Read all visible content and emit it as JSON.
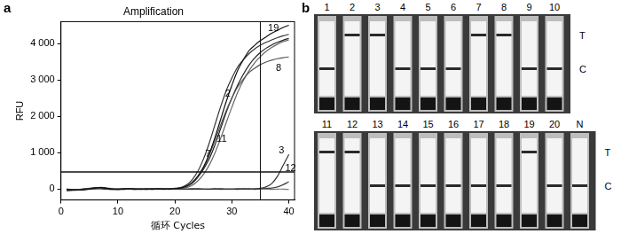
{
  "chart_data": {
    "type": "line",
    "title": "Amplification",
    "x_label": "循环 Cycles",
    "y_label": "RFU",
    "x": [
      1,
      2,
      3,
      4,
      5,
      6,
      7,
      8,
      9,
      10,
      11,
      12,
      13,
      14,
      15,
      16,
      17,
      18,
      19,
      20,
      21,
      22,
      23,
      24,
      25,
      26,
      27,
      28,
      29,
      30,
      31,
      32,
      33,
      34,
      35,
      36,
      37,
      38,
      39,
      40
    ],
    "series": [
      {
        "color": "#111111",
        "values": [
          0,
          -20,
          -30,
          -20,
          0,
          30,
          50,
          20,
          0,
          -10,
          0,
          10,
          0,
          -10,
          0,
          0,
          10,
          0,
          0,
          10,
          30,
          80,
          180,
          350,
          600,
          950,
          1400,
          1900,
          2400,
          2850,
          3250,
          3550,
          3800,
          3950,
          4080,
          4180,
          4280,
          4360,
          4440,
          4500
        ]
      },
      {
        "color": "#333333",
        "values": [
          -10,
          -30,
          -20,
          0,
          20,
          40,
          30,
          10,
          0,
          0,
          10,
          0,
          -10,
          0,
          0,
          10,
          0,
          0,
          10,
          20,
          40,
          110,
          250,
          480,
          820,
          1250,
          1750,
          2250,
          2700,
          3050,
          3350,
          3550,
          3720,
          3850,
          3950,
          4030,
          4100,
          4160,
          4210,
          4250
        ]
      },
      {
        "color": "#555555",
        "values": [
          0,
          -10,
          -20,
          -10,
          10,
          20,
          40,
          30,
          10,
          0,
          0,
          0,
          10,
          0,
          -10,
          0,
          0,
          10,
          0,
          0,
          20,
          60,
          150,
          320,
          580,
          920,
          1320,
          1750,
          2150,
          2500,
          2800,
          3020,
          3200,
          3320,
          3420,
          3490,
          3540,
          3580,
          3610,
          3630
        ]
      },
      {
        "color": "#222222",
        "values": [
          -20,
          -30,
          -10,
          0,
          10,
          20,
          20,
          0,
          -10,
          0,
          0,
          10,
          0,
          0,
          0,
          -10,
          0,
          0,
          0,
          10,
          20,
          70,
          160,
          320,
          540,
          820,
          1200,
          1650,
          2100,
          2500,
          2850,
          3150,
          3400,
          3600,
          3750,
          3870,
          3960,
          4030,
          4090,
          4140
        ]
      },
      {
        "color": "#666666",
        "values": [
          -10,
          -20,
          -20,
          0,
          0,
          10,
          30,
          20,
          0,
          0,
          -10,
          0,
          0,
          10,
          0,
          0,
          0,
          -10,
          0,
          0,
          10,
          40,
          100,
          220,
          400,
          650,
          980,
          1380,
          1820,
          2250,
          2650,
          2980,
          3250,
          3470,
          3640,
          3780,
          3890,
          3980,
          4050,
          4100
        ]
      },
      {
        "color": "#333333",
        "values": [
          -30,
          -20,
          -10,
          0,
          10,
          20,
          10,
          0,
          0,
          -10,
          0,
          0,
          0,
          0,
          10,
          0,
          0,
          0,
          0,
          0,
          0,
          0,
          10,
          0,
          0,
          0,
          10,
          0,
          0,
          0,
          0,
          10,
          0,
          10,
          20,
          60,
          150,
          350,
          650,
          950
        ]
      },
      {
        "color": "#444444",
        "values": [
          -40,
          -30,
          -20,
          -10,
          0,
          10,
          20,
          10,
          0,
          0,
          0,
          0,
          0,
          0,
          0,
          0,
          0,
          10,
          0,
          0,
          0,
          0,
          0,
          10,
          0,
          0,
          0,
          10,
          0,
          0,
          10,
          0,
          10,
          0,
          10,
          20,
          30,
          60,
          120,
          200
        ]
      },
      {
        "color": "#777777",
        "values": [
          -60,
          -40,
          -30,
          -20,
          -10,
          0,
          10,
          0,
          -10,
          -10,
          -10,
          0,
          -10,
          0,
          -10,
          0,
          -10,
          0,
          -10,
          0,
          -10,
          0,
          -10,
          0,
          0,
          -10,
          0,
          -10,
          0,
          0,
          -10,
          0,
          0,
          -10,
          0,
          0,
          -10,
          0,
          0,
          -10
        ]
      }
    ],
    "xlim": [
      0,
      41
    ],
    "xticks": [
      0,
      10,
      20,
      30,
      40
    ],
    "ylim": [
      -300,
      4600
    ],
    "yticks": [
      0,
      {
        "value": 1000,
        "label": "1 000"
      },
      {
        "value": 2000,
        "label": "2 000"
      },
      {
        "value": 3000,
        "label": "3 000"
      },
      {
        "value": 4000,
        "label": "4 000"
      }
    ],
    "threshold": 470,
    "cutoff_cycle": 35,
    "annotations": [
      {
        "text": "19",
        "x": 37.3,
        "y": 4420
      },
      {
        "text": "2",
        "x": 29.3,
        "y": 2620
      },
      {
        "text": "8",
        "x": 38.2,
        "y": 3330
      },
      {
        "text": "11",
        "x": 28.2,
        "y": 1380
      },
      {
        "text": "7",
        "x": 25.8,
        "y": 950
      },
      {
        "text": "3",
        "x": 38.7,
        "y": 1060
      },
      {
        "text": "12",
        "x": 40.3,
        "y": 560
      }
    ],
    "grid": false,
    "legend": false
  },
  "panel_labels": [
    "a",
    "b"
  ],
  "strip_test": {
    "band_labels": [
      "T",
      "C"
    ],
    "rows": [
      [
        {
          "lane": "1",
          "T": false,
          "C": true
        },
        {
          "lane": "2",
          "T": true,
          "C": false
        },
        {
          "lane": "3",
          "T": true,
          "C": false
        },
        {
          "lane": "4",
          "T": false,
          "C": true
        },
        {
          "lane": "5",
          "T": false,
          "C": true
        },
        {
          "lane": "6",
          "T": false,
          "C": true
        },
        {
          "lane": "7",
          "T": true,
          "C": false
        },
        {
          "lane": "8",
          "T": true,
          "C": false
        },
        {
          "lane": "9",
          "T": false,
          "C": true
        },
        {
          "lane": "10",
          "T": false,
          "C": true
        }
      ],
      [
        {
          "lane": "11",
          "T": true,
          "C": false
        },
        {
          "lane": "12",
          "T": true,
          "C": false
        },
        {
          "lane": "13",
          "T": false,
          "C": true
        },
        {
          "lane": "14",
          "T": false,
          "C": true
        },
        {
          "lane": "15",
          "T": false,
          "C": true
        },
        {
          "lane": "16",
          "T": false,
          "C": true
        },
        {
          "lane": "17",
          "T": false,
          "C": true
        },
        {
          "lane": "18",
          "T": false,
          "C": true
        },
        {
          "lane": "19",
          "T": true,
          "C": false
        },
        {
          "lane": "20",
          "T": false,
          "C": true
        },
        {
          "lane": "N",
          "T": false,
          "C": true
        }
      ]
    ]
  }
}
